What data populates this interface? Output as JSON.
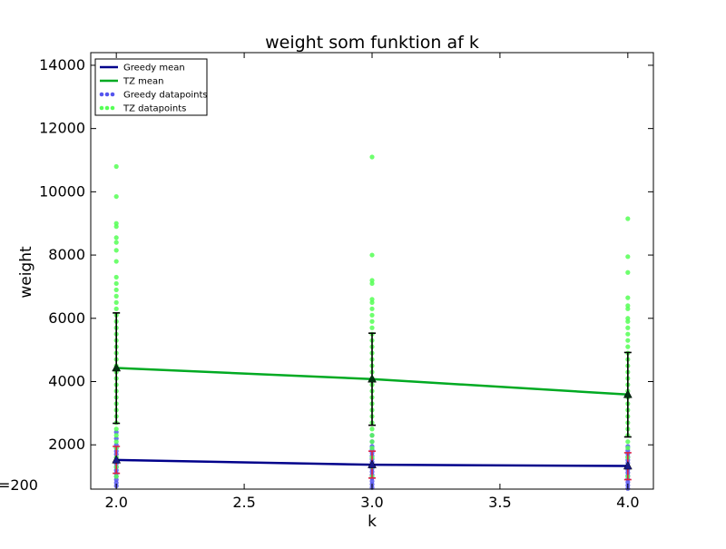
{
  "chart_data": {
    "type": "scatter",
    "title": "weight som funktion af k",
    "xlabel": "k",
    "ylabel": "weight",
    "stray_label": "=200",
    "xlim": [
      1.9,
      4.1
    ],
    "ylim": [
      600,
      14400
    ],
    "xticks": [
      2.0,
      2.5,
      3.0,
      3.5,
      4.0
    ],
    "xtick_labels": [
      "2.0",
      "2.5",
      "3.0",
      "3.5",
      "4.0"
    ],
    "yticks": [
      2000,
      4000,
      6000,
      8000,
      10000,
      12000,
      14000
    ],
    "ytick_labels": [
      "2000",
      "4000",
      "6000",
      "8000",
      "10000",
      "12000",
      "14000"
    ],
    "grid": false,
    "legend_position": "top-left",
    "legend": [
      {
        "label": "Greedy mean",
        "kind": "line",
        "color": "#00008B"
      },
      {
        "label": "TZ mean",
        "kind": "line",
        "color": "#00AA22"
      },
      {
        "label": "Greedy datapoints",
        "kind": "dots",
        "color": "#5555EE"
      },
      {
        "label": "TZ datapoints",
        "kind": "dots",
        "color": "#55FF55"
      }
    ],
    "series": [
      {
        "label": "Greedy mean",
        "kind": "line",
        "color": "#00008B",
        "x": [
          2.0,
          3.0,
          4.0
        ],
        "y": [
          1520,
          1370,
          1330
        ],
        "errors": [
          {
            "x": 2.0,
            "low": 1100,
            "high": 1950
          },
          {
            "x": 3.0,
            "low": 950,
            "high": 1800
          },
          {
            "x": 4.0,
            "low": 900,
            "high": 1750
          }
        ],
        "error_color": "#DD2244"
      },
      {
        "label": "TZ mean",
        "kind": "line",
        "color": "#00AA22",
        "x": [
          2.0,
          3.0,
          4.0
        ],
        "y": [
          4430,
          4080,
          3590
        ],
        "errors": [
          {
            "x": 2.0,
            "low": 2680,
            "high": 6170
          },
          {
            "x": 3.0,
            "low": 2620,
            "high": 5530
          },
          {
            "x": 4.0,
            "low": 2250,
            "high": 4920
          }
        ],
        "error_color": "#000000"
      },
      {
        "label": "Greedy datapoints",
        "kind": "dots",
        "color": "#5555EE",
        "points": [
          {
            "x": 2.0,
            "y": [
              700,
              800,
              900,
              1000,
              1100,
              1200,
              1300,
              1400,
              1500,
              1600,
              1700,
              1800,
              1900,
              2000,
              2200,
              2400
            ]
          },
          {
            "x": 3.0,
            "y": [
              650,
              750,
              850,
              950,
              1050,
              1150,
              1250,
              1350,
              1450,
              1550,
              1650,
              1750,
              1850,
              1950,
              2100,
              2300
            ]
          },
          {
            "x": 4.0,
            "y": [
              620,
              720,
              820,
              920,
              1020,
              1120,
              1220,
              1320,
              1420,
              1520,
              1620,
              1720,
              1820,
              1950
            ]
          }
        ]
      },
      {
        "label": "TZ datapoints",
        "kind": "dots",
        "color": "#55FF55",
        "points": [
          {
            "x": 2.0,
            "y": [
              1000,
              1300,
              1600,
              1900,
              2100,
              2300,
              2500,
              2700,
              2900,
              3100,
              3300,
              3500,
              3700,
              3900,
              4100,
              4300,
              4500,
              4700,
              4900,
              5100,
              5300,
              5500,
              5700,
              5900,
              6100,
              6300,
              6500,
              6700,
              6900,
              7100,
              7300,
              7800,
              8150,
              8400,
              8550,
              8900,
              9000,
              9850,
              10800
            ]
          },
          {
            "x": 3.0,
            "y": [
              1000,
              1300,
              1600,
              1900,
              2100,
              2300,
              2500,
              2700,
              2900,
              3100,
              3300,
              3500,
              3700,
              3900,
              4100,
              4300,
              4500,
              4700,
              4900,
              5100,
              5300,
              5500,
              5700,
              5900,
              6100,
              6300,
              6500,
              6600,
              7100,
              7200,
              8000,
              11100
            ]
          },
          {
            "x": 4.0,
            "y": [
              1000,
              1300,
              1600,
              1900,
              2100,
              2300,
              2500,
              2700,
              2900,
              3100,
              3300,
              3500,
              3700,
              3900,
              4100,
              4300,
              4500,
              4700,
              4900,
              5100,
              5300,
              5500,
              5700,
              5900,
              6000,
              6300,
              6400,
              6650,
              7450,
              7950,
              9150
            ]
          }
        ]
      }
    ]
  }
}
